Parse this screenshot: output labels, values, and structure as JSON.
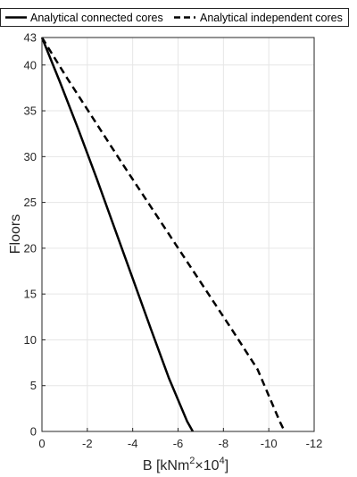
{
  "chart_data": {
    "type": "line",
    "title": "",
    "xlabel": {
      "text": "B [kNm",
      "sup1": "2",
      "mid": "×10",
      "sup2": "4",
      "end": "]"
    },
    "ylabel": "Floors",
    "xlim": [
      0,
      -12
    ],
    "ylim": [
      0,
      43
    ],
    "xticks": [
      0,
      -2,
      -4,
      -6,
      -8,
      -10,
      -12
    ],
    "yticks": [
      0,
      5,
      10,
      15,
      20,
      25,
      30,
      35,
      40,
      43
    ],
    "grid": true,
    "legend_position": "top",
    "series": [
      {
        "name": "Analytical connected cores",
        "color": "#000000",
        "style": "solid",
        "x": [
          0.0,
          -0.8,
          -1.6,
          -2.4,
          -3.2,
          -4.0,
          -4.8,
          -5.6,
          -6.4,
          -6.65
        ],
        "y": [
          43,
          38.1,
          33.0,
          27.7,
          22.2,
          16.7,
          11.2,
          5.8,
          1.1,
          0
        ]
      },
      {
        "name": "Analytical independent cores",
        "color": "#000000",
        "style": "dashed",
        "x": [
          0.0,
          -1.1,
          -2.3,
          -3.5,
          -4.7,
          -5.9,
          -7.1,
          -8.3,
          -9.5,
          -10.5,
          -10.7
        ],
        "y": [
          43,
          38.6,
          34.0,
          29.4,
          24.9,
          20.4,
          15.9,
          11.4,
          6.8,
          1.0,
          0
        ]
      }
    ]
  }
}
